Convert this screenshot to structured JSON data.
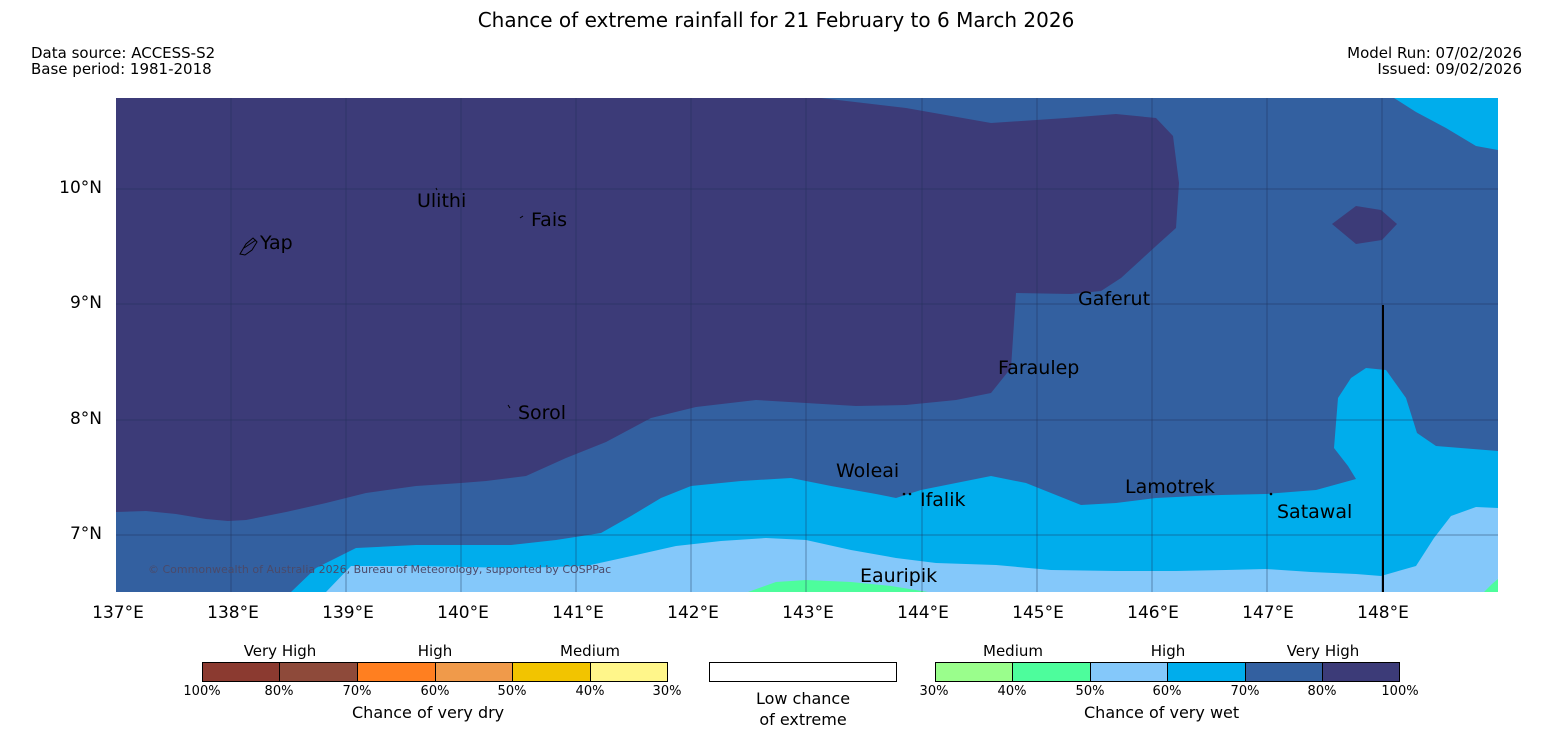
{
  "title": "Chance of extreme rainfall for 21 February to 6 March 2026",
  "data_source": "Data source: ACCESS-S2",
  "base_period": "Base period: 1981-2018",
  "model_run": "Model Run: 07/02/2026",
  "issued": "Issued: 09/02/2026",
  "copyright": "© Commonwealth of Australia 2026, Bureau of Meteorology, supported by COSPPac",
  "lat_labels": [
    "10°N",
    "9°N",
    "8°N",
    "7°N"
  ],
  "lon_labels": [
    "137°E",
    "138°E",
    "139°E",
    "140°E",
    "141°E",
    "142°E",
    "143°E",
    "144°E",
    "145°E",
    "146°E",
    "147°E",
    "148°E"
  ],
  "places": [
    "Ulithi",
    "Fais",
    "Yap",
    "Gaferut",
    "Faraulep",
    "Sorol",
    "Woleai",
    "Ifalik",
    "Lamotrek",
    "Satawal",
    "Eauripik"
  ],
  "legend_dry": {
    "heads": [
      "Very High",
      "High",
      "Medium"
    ],
    "ticks": [
      "100%",
      "80%",
      "70%",
      "60%",
      "50%",
      "40%",
      "30%"
    ],
    "colors": [
      "#8b3a30",
      "#8e4a3a",
      "#ff7f20",
      "#f09a4a",
      "#f2c400",
      "#fff68a"
    ],
    "title": "Chance of very dry"
  },
  "legend_low": {
    "line1": "Low chance",
    "line2": "of extreme"
  },
  "legend_wet": {
    "heads": [
      "Medium",
      "High",
      "Very High"
    ],
    "ticks": [
      "30%",
      "40%",
      "50%",
      "60%",
      "70%",
      "80%",
      "100%"
    ],
    "colors": [
      "#9afe8c",
      "#4dfd9c",
      "#84c8fa",
      "#00adec",
      "#3360a0",
      "#3c3b78"
    ],
    "title": "Chance of very wet"
  },
  "map_colors": {
    "very_high_80_100": "#3c3b78",
    "very_high_70_80": "#3360a0",
    "high_60_70": "#00adec",
    "high_50_60": "#84c8fa",
    "medium_40_50": "#4dfd9c",
    "medium_30_40": "#9afe8c"
  }
}
